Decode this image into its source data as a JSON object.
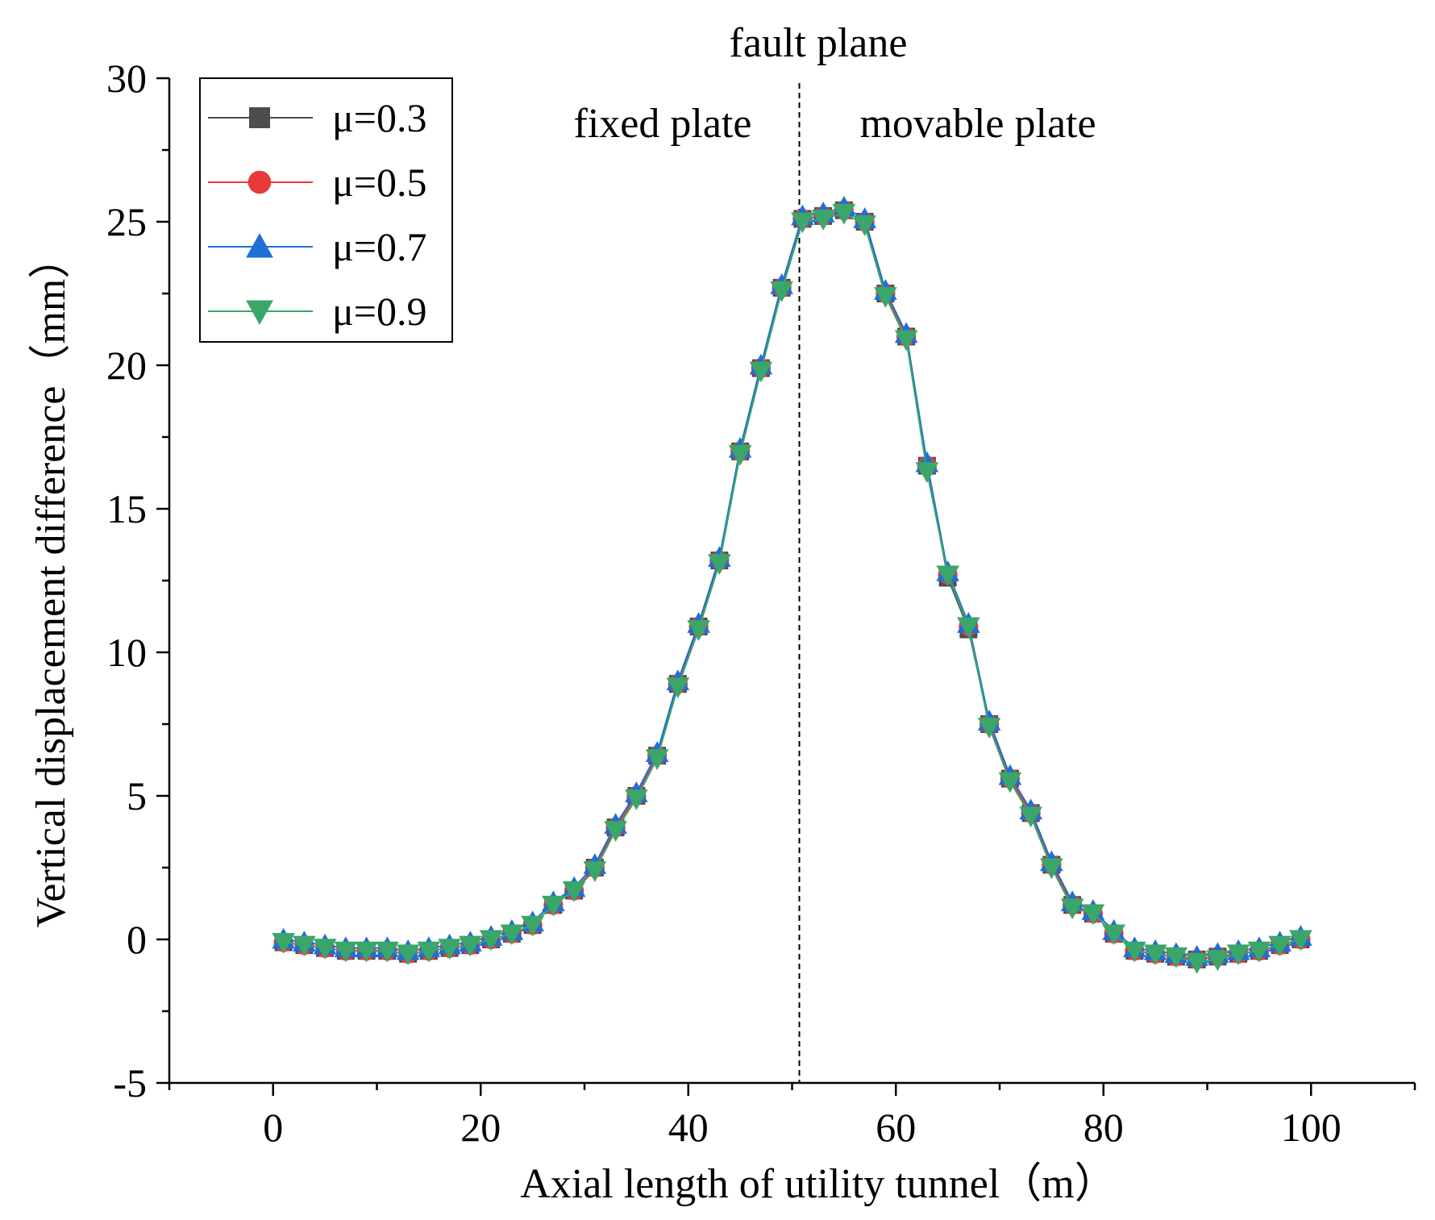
{
  "chart_data": {
    "type": "line",
    "title": "",
    "xlabel": "Axial length of utility tunnel（m）",
    "ylabel": "Vertical displacement difference（mm）",
    "xlim": [
      -10,
      110
    ],
    "ylim": [
      -5,
      30
    ],
    "x_ticks": [
      "0",
      "20",
      "40",
      "60",
      "80",
      "100"
    ],
    "y_ticks": [
      "-5",
      "0",
      "5",
      "10",
      "15",
      "20",
      "25",
      "30"
    ],
    "grid": false,
    "legend_position": "top-left",
    "annotations": {
      "fault_line_x": 50.7,
      "fault_label": "fault plane",
      "left_label": "fixed plate",
      "right_label": "movable plate"
    },
    "x": [
      1,
      3,
      5,
      7,
      9,
      11,
      13,
      15,
      17,
      19,
      21,
      23,
      25,
      27,
      29,
      31,
      33,
      35,
      37,
      39,
      41,
      43,
      45,
      47,
      49,
      51,
      53,
      55,
      57,
      59,
      61,
      63,
      65,
      67,
      69,
      71,
      73,
      75,
      77,
      79,
      81,
      83,
      85,
      87,
      89,
      91,
      93,
      95,
      97,
      99
    ],
    "series": [
      {
        "name": "μ=0.3",
        "color": "#4d4d4d",
        "marker": "square",
        "values": [
          -0.1,
          -0.2,
          -0.3,
          -0.4,
          -0.4,
          -0.4,
          -0.5,
          -0.4,
          -0.3,
          -0.2,
          0.0,
          0.2,
          0.5,
          1.2,
          1.7,
          2.5,
          3.9,
          5.0,
          6.4,
          8.9,
          10.9,
          13.2,
          17.0,
          19.9,
          22.7,
          25.1,
          25.2,
          25.4,
          25.0,
          22.5,
          21.0,
          16.5,
          12.6,
          10.8,
          7.5,
          5.6,
          4.4,
          2.6,
          1.2,
          0.9,
          0.2,
          -0.4,
          -0.5,
          -0.6,
          -0.7,
          -0.6,
          -0.5,
          -0.4,
          -0.2,
          0.0
        ]
      },
      {
        "name": "μ=0.5",
        "color": "#e8393b",
        "marker": "circle",
        "values": [
          -0.1,
          -0.2,
          -0.3,
          -0.4,
          -0.4,
          -0.4,
          -0.5,
          -0.4,
          -0.3,
          -0.2,
          0.0,
          0.2,
          0.5,
          1.2,
          1.7,
          2.5,
          3.9,
          5.0,
          6.4,
          8.9,
          10.9,
          13.2,
          17.0,
          19.9,
          22.7,
          25.1,
          25.2,
          25.4,
          25.0,
          22.5,
          21.0,
          16.5,
          12.7,
          10.9,
          7.5,
          5.6,
          4.4,
          2.6,
          1.2,
          0.9,
          0.2,
          -0.4,
          -0.5,
          -0.6,
          -0.7,
          -0.6,
          -0.5,
          -0.4,
          -0.2,
          0.0
        ]
      },
      {
        "name": "μ=0.7",
        "color": "#1f6fd6",
        "marker": "triangle-up",
        "values": [
          0.0,
          -0.1,
          -0.2,
          -0.3,
          -0.3,
          -0.3,
          -0.4,
          -0.3,
          -0.2,
          -0.1,
          0.1,
          0.3,
          0.6,
          1.3,
          1.8,
          2.6,
          4.0,
          5.1,
          6.5,
          9.0,
          11.0,
          13.3,
          17.1,
          20.0,
          22.8,
          25.2,
          25.3,
          25.5,
          25.1,
          22.6,
          21.1,
          16.6,
          12.8,
          11.0,
          7.6,
          5.7,
          4.5,
          2.7,
          1.3,
          1.0,
          0.3,
          -0.3,
          -0.4,
          -0.5,
          -0.6,
          -0.5,
          -0.4,
          -0.3,
          -0.1,
          0.1
        ]
      },
      {
        "name": "μ=0.9",
        "color": "#3aa66a",
        "marker": "triangle-down",
        "values": [
          -0.1,
          -0.2,
          -0.3,
          -0.4,
          -0.4,
          -0.4,
          -0.5,
          -0.4,
          -0.3,
          -0.2,
          0.0,
          0.2,
          0.5,
          1.2,
          1.7,
          2.4,
          3.8,
          4.9,
          6.3,
          8.8,
          10.8,
          13.1,
          16.9,
          19.8,
          22.6,
          25.0,
          25.1,
          25.3,
          24.9,
          22.4,
          20.9,
          16.3,
          12.7,
          10.9,
          7.4,
          5.5,
          4.3,
          2.5,
          1.1,
          0.9,
          0.2,
          -0.4,
          -0.5,
          -0.6,
          -0.8,
          -0.7,
          -0.5,
          -0.4,
          -0.2,
          0.0
        ]
      }
    ]
  }
}
